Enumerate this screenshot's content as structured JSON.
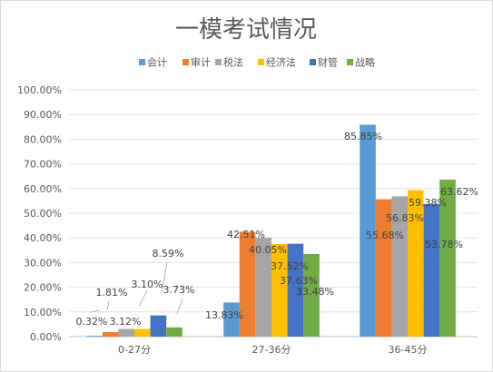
{
  "chart_data": {
    "type": "bar",
    "title": "一模考试情况",
    "categories": [
      "0-27分",
      "27-36分",
      "36-45分"
    ],
    "ylim": [
      0,
      100
    ],
    "ytick_step": 10,
    "ytick_format": "percent_2dp",
    "grid": true,
    "legend_position": "top",
    "series": [
      {
        "name": "会计",
        "color": "#5b9bd5",
        "values": [
          0.32,
          13.83,
          85.85
        ],
        "labels": [
          "0.32%",
          "13.83%",
          "85.85%"
        ]
      },
      {
        "name": "审计",
        "color": "#ed7d31",
        "values": [
          1.81,
          42.51,
          55.68
        ],
        "labels": [
          "1.81%",
          "42.51%",
          "55.68%"
        ]
      },
      {
        "name": "税法",
        "color": "#a5a5a5",
        "values": [
          3.12,
          40.05,
          56.83
        ],
        "labels": [
          "3.12%",
          "40.05%",
          "56.83%"
        ]
      },
      {
        "name": "经济法",
        "color": "#ffc000",
        "values": [
          3.1,
          37.52,
          59.38
        ],
        "labels": [
          "3.10%",
          "37.52%",
          "59.38%"
        ]
      },
      {
        "name": "财管",
        "color": "#4472c4",
        "values": [
          8.59,
          37.63,
          53.78
        ],
        "labels": [
          "8.59%",
          "37.63%",
          "53.78%"
        ]
      },
      {
        "name": "战略",
        "color": "#70ad47",
        "values": [
          3.73,
          33.48,
          63.62
        ],
        "labels": [
          "3.73%",
          "33.48%",
          "63.62%"
        ]
      }
    ]
  }
}
